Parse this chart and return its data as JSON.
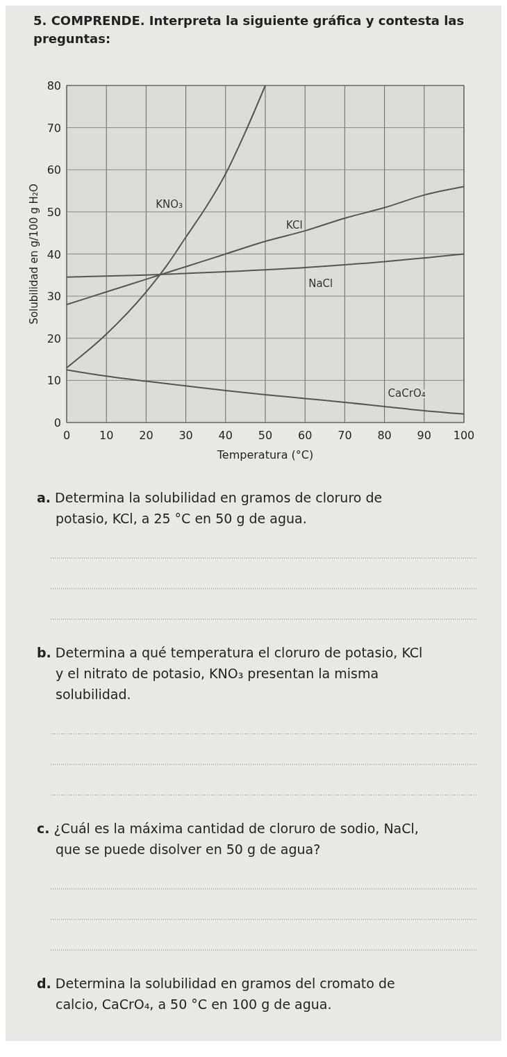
{
  "chart_data": {
    "type": "line",
    "title": "5. COMPRENDE. Interpreta la siguiente gráfica y contesta las preguntas:",
    "xlabel": "Temperatura (°C)",
    "ylabel": "Solubilidad en g/100 g H₂O",
    "xlim": [
      0,
      100
    ],
    "xticks": [
      0,
      10,
      20,
      30,
      40,
      50,
      60,
      70,
      80,
      90,
      100
    ],
    "ylim": [
      0,
      80
    ],
    "yticks": [
      0,
      10,
      20,
      30,
      40,
      50,
      60,
      70,
      80
    ],
    "grid": true,
    "marker": "none",
    "line_style": "solid",
    "series": [
      {
        "name": "KNO₃",
        "color": "#555555",
        "x": [
          0,
          10,
          20,
          25,
          30,
          35,
          40,
          45,
          50
        ],
        "values": [
          13,
          21,
          31,
          37,
          44,
          51,
          59,
          69,
          80
        ]
      },
      {
        "name": "KCl",
        "color": "#555555",
        "x": [
          0,
          10,
          20,
          30,
          40,
          50,
          60,
          70,
          80,
          90,
          100
        ],
        "values": [
          28,
          31,
          34,
          37,
          40,
          43,
          45.5,
          48.5,
          51,
          54,
          56
        ]
      },
      {
        "name": "NaCl",
        "color": "#555555",
        "x": [
          0,
          20,
          40,
          60,
          80,
          100
        ],
        "values": [
          34.5,
          35,
          35.8,
          36.8,
          38.2,
          40
        ]
      },
      {
        "name": "CaCrO₄",
        "color": "#555555",
        "x": [
          0,
          10,
          20,
          30,
          40,
          50,
          60,
          70,
          80,
          90,
          100
        ],
        "values": [
          12.5,
          11,
          9.8,
          8.7,
          7.6,
          6.6,
          5.7,
          4.8,
          3.8,
          2.8,
          2
        ]
      }
    ],
    "annotations": [
      "a. Determina la solubilidad en gramos de cloruro de potasio, KCl, a 25 °C en 50 g de agua.",
      "b. Determina a qué temperatura el cloruro de potasio, KCl y el nitrato de potasio, KNO₃ presentan la misma solubilidad.",
      "c. ¿Cuál es la máxima cantidad de cloruro de sodio, NaCl, que se puede disolver en 50 g de agua?",
      "d. Determina la solubilidad en gramos del cromato de calcio, CaCrO₄, a 50 °C en 100 g de agua."
    ]
  }
}
